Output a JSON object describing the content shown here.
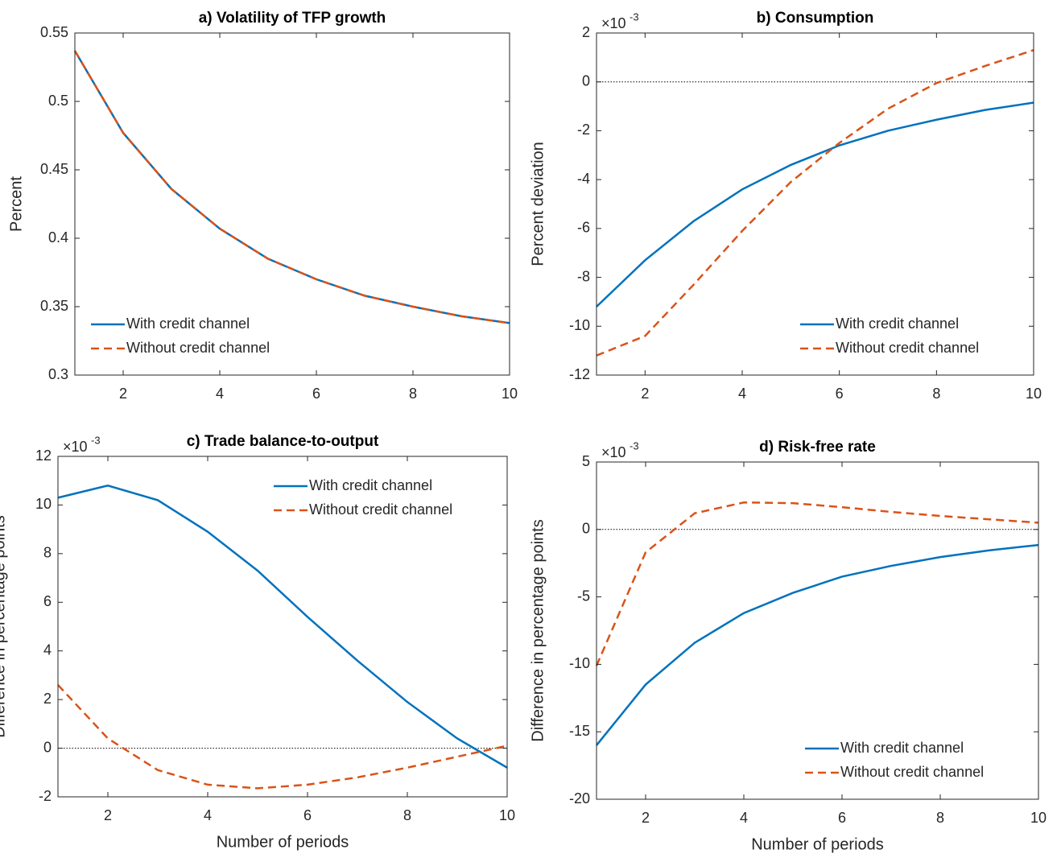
{
  "chart_data": [
    {
      "type": "line",
      "title": "a) Volatility of TFP growth",
      "ylabel": "Percent",
      "x": [
        1,
        2,
        3,
        4,
        5,
        6,
        7,
        8,
        9,
        10
      ],
      "xlim": [
        1,
        10
      ],
      "xticks": [
        2,
        4,
        6,
        8,
        10
      ],
      "ylim": [
        0.3,
        0.55
      ],
      "yticks": [
        0.3,
        0.35,
        0.4,
        0.45,
        0.5,
        0.55
      ],
      "legend": "lower left",
      "series": [
        {
          "name": "With credit channel",
          "color": "#0072bd",
          "linestyle": "solid",
          "values": [
            0.537,
            0.477,
            0.436,
            0.407,
            0.385,
            0.37,
            0.358,
            0.35,
            0.343,
            0.338
          ]
        },
        {
          "name": "Without credit channel",
          "color": "#d95319",
          "linestyle": "dashed",
          "values": [
            0.537,
            0.477,
            0.436,
            0.407,
            0.385,
            0.37,
            0.358,
            0.35,
            0.343,
            0.338
          ]
        }
      ]
    },
    {
      "type": "line",
      "title": "b) Consumption",
      "ylabel": "Percent deviation",
      "axis_multiplier": {
        "base": "×10",
        "exponent": "-3"
      },
      "hline": 0,
      "x": [
        1,
        2,
        3,
        4,
        5,
        6,
        7,
        8,
        9,
        10
      ],
      "xlim": [
        1,
        10
      ],
      "xticks": [
        2,
        4,
        6,
        8,
        10
      ],
      "ylim": [
        -12,
        2
      ],
      "yticks": [
        -12,
        -10,
        -8,
        -6,
        -4,
        -2,
        0,
        2
      ],
      "legend": "lower right",
      "series": [
        {
          "name": "With credit channel",
          "color": "#0072bd",
          "linestyle": "solid",
          "values": [
            -9.2,
            -7.3,
            -5.7,
            -4.4,
            -3.4,
            -2.6,
            -2.0,
            -1.55,
            -1.15,
            -0.85
          ]
        },
        {
          "name": "Without credit channel",
          "color": "#d95319",
          "linestyle": "dashed",
          "values": [
            -11.2,
            -10.4,
            -8.3,
            -6.1,
            -4.1,
            -2.5,
            -1.1,
            -0.05,
            0.65,
            1.3
          ]
        }
      ]
    },
    {
      "type": "line",
      "title": "c) Trade balance-to-output",
      "ylabel": "Difference in percentage points",
      "xlabel": "Number of periods",
      "axis_multiplier": {
        "base": "×10",
        "exponent": "-3"
      },
      "hline": 0,
      "x": [
        1,
        2,
        3,
        4,
        5,
        6,
        7,
        8,
        9,
        10
      ],
      "xlim": [
        1,
        10
      ],
      "xticks": [
        2,
        4,
        6,
        8,
        10
      ],
      "ylim": [
        -2,
        12
      ],
      "yticks": [
        -2,
        0,
        2,
        4,
        6,
        8,
        10,
        12
      ],
      "legend": "upper right",
      "series": [
        {
          "name": "With credit channel",
          "color": "#0072bd",
          "linestyle": "solid",
          "values": [
            10.3,
            10.8,
            10.2,
            8.9,
            7.3,
            5.4,
            3.6,
            1.9,
            0.4,
            -0.8
          ]
        },
        {
          "name": "Without credit channel",
          "color": "#d95319",
          "linestyle": "dashed",
          "values": [
            2.6,
            0.4,
            -0.9,
            -1.5,
            -1.65,
            -1.5,
            -1.2,
            -0.8,
            -0.35,
            0.1
          ]
        }
      ]
    },
    {
      "type": "line",
      "title": "d) Risk-free rate",
      "ylabel": "Difference in percentage points",
      "xlabel": "Number of periods",
      "axis_multiplier": {
        "base": "×10",
        "exponent": "-3"
      },
      "hline": 0,
      "x": [
        1,
        2,
        3,
        4,
        5,
        6,
        7,
        8,
        9,
        10
      ],
      "xlim": [
        1,
        10
      ],
      "xticks": [
        2,
        4,
        6,
        8,
        10
      ],
      "ylim": [
        -20,
        5
      ],
      "yticks": [
        -20,
        -15,
        -10,
        -5,
        0,
        5
      ],
      "legend": "lower right",
      "series": [
        {
          "name": "With credit channel",
          "color": "#0072bd",
          "linestyle": "solid",
          "values": [
            -16,
            -11.5,
            -8.4,
            -6.2,
            -4.7,
            -3.5,
            -2.7,
            -2.05,
            -1.55,
            -1.15
          ]
        },
        {
          "name": "Without credit channel",
          "color": "#d95319",
          "linestyle": "dashed",
          "values": [
            -10.1,
            -1.7,
            1.2,
            2.0,
            1.95,
            1.65,
            1.3,
            1.0,
            0.75,
            0.5
          ]
        }
      ]
    }
  ]
}
